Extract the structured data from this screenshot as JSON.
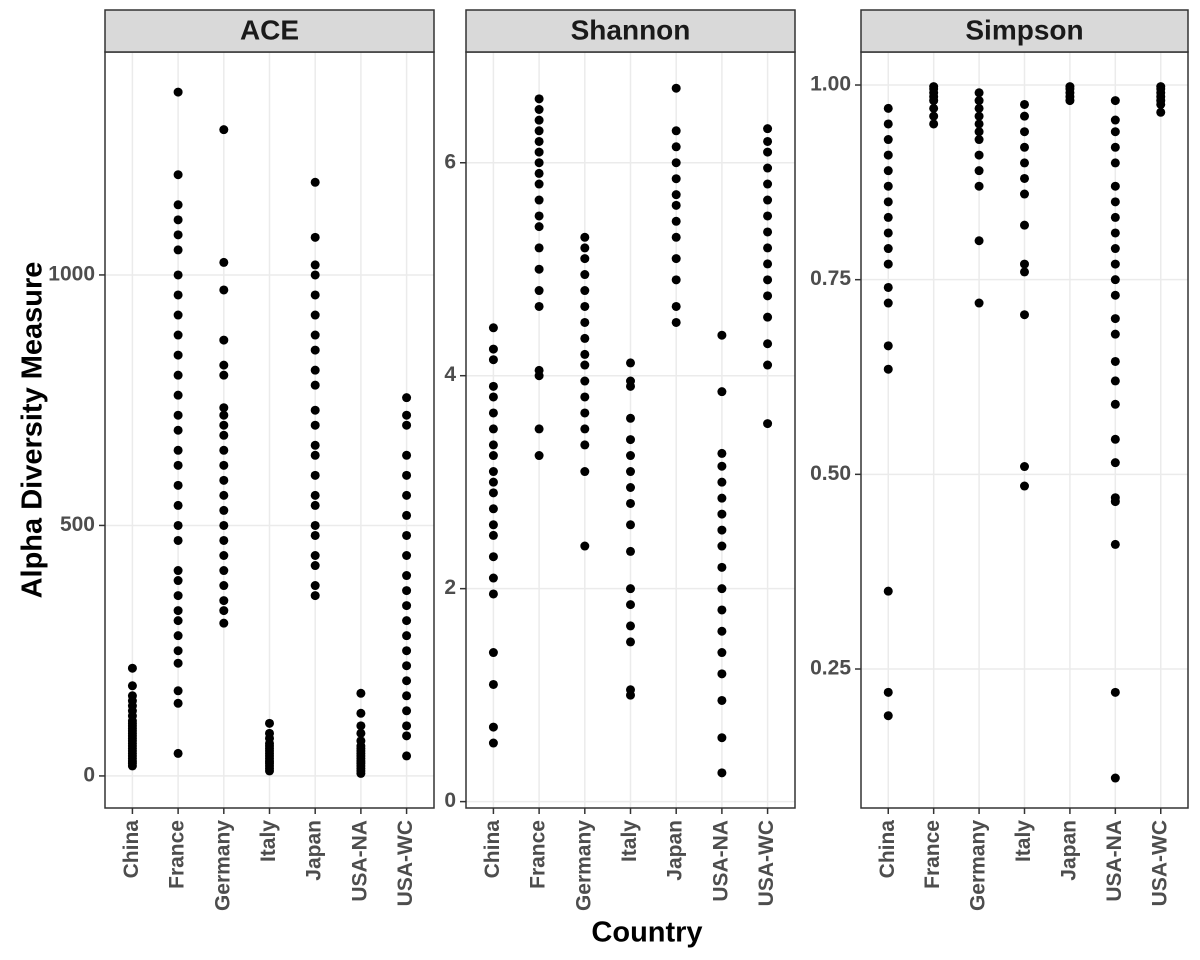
{
  "ylabel": "Alpha Diversity Measure",
  "xlabel": "Country",
  "chart_data": [
    {
      "type": "strip",
      "title": "ACE",
      "color": "#000000",
      "grid": true,
      "categories": [
        "China",
        "France",
        "Germany",
        "Italy",
        "Japan",
        "USA-NA",
        "USA-WC"
      ],
      "ylim": [
        -64,
        1445
      ],
      "yticks": [
        0,
        500,
        1000
      ],
      "values": [
        [
          20,
          25,
          30,
          35,
          40,
          45,
          50,
          55,
          60,
          65,
          70,
          75,
          80,
          85,
          90,
          95,
          100,
          105,
          110,
          120,
          130,
          140,
          150,
          160,
          180,
          215
        ],
        [
          45,
          145,
          170,
          225,
          250,
          280,
          310,
          330,
          360,
          390,
          410,
          470,
          500,
          540,
          580,
          620,
          650,
          690,
          720,
          760,
          800,
          840,
          880,
          920,
          960,
          1000,
          1050,
          1080,
          1110,
          1140,
          1200,
          1365
        ],
        [
          305,
          330,
          350,
          380,
          410,
          440,
          470,
          500,
          530,
          560,
          590,
          620,
          650,
          680,
          700,
          720,
          735,
          800,
          820,
          870,
          970,
          1025,
          1290
        ],
        [
          10,
          15,
          20,
          25,
          30,
          35,
          40,
          45,
          50,
          55,
          60,
          65,
          75,
          85,
          105
        ],
        [
          360,
          380,
          420,
          440,
          480,
          500,
          540,
          560,
          600,
          640,
          660,
          700,
          730,
          780,
          810,
          850,
          880,
          920,
          960,
          1000,
          1020,
          1075,
          1185
        ],
        [
          5,
          10,
          15,
          20,
          25,
          30,
          35,
          40,
          45,
          50,
          55,
          60,
          70,
          85,
          100,
          125,
          165
        ],
        [
          40,
          80,
          100,
          130,
          160,
          190,
          220,
          250,
          280,
          310,
          340,
          370,
          400,
          440,
          480,
          520,
          560,
          600,
          640,
          700,
          720,
          755
        ]
      ]
    },
    {
      "type": "strip",
      "title": "Shannon",
      "color": "#000000",
      "grid": true,
      "categories": [
        "China",
        "France",
        "Germany",
        "Italy",
        "Japan",
        "USA-NA",
        "USA-WC"
      ],
      "ylim": [
        -0.06,
        7.04
      ],
      "yticks": [
        0,
        2,
        4,
        6
      ],
      "values": [
        [
          0.55,
          0.7,
          1.1,
          1.4,
          1.95,
          2.1,
          2.3,
          2.5,
          2.6,
          2.75,
          2.9,
          3.0,
          3.1,
          3.25,
          3.35,
          3.5,
          3.65,
          3.8,
          3.9,
          4.15,
          4.25,
          4.45
        ],
        [
          3.25,
          3.5,
          4.0,
          4.05,
          4.65,
          4.8,
          5.0,
          5.2,
          5.4,
          5.5,
          5.65,
          5.8,
          5.9,
          6.0,
          6.1,
          6.2,
          6.3,
          6.4,
          6.5,
          6.6
        ],
        [
          2.4,
          3.1,
          3.35,
          3.5,
          3.65,
          3.8,
          3.95,
          4.1,
          4.2,
          4.35,
          4.5,
          4.65,
          4.8,
          4.95,
          5.1,
          5.2,
          5.3
        ],
        [
          1.0,
          1.05,
          1.5,
          1.65,
          1.85,
          2.0,
          2.35,
          2.6,
          2.8,
          2.95,
          3.1,
          3.25,
          3.4,
          3.6,
          3.9,
          3.95,
          4.12
        ],
        [
          4.5,
          4.65,
          4.9,
          5.1,
          5.3,
          5.45,
          5.6,
          5.7,
          5.85,
          6.0,
          6.15,
          6.3,
          6.7
        ],
        [
          0.27,
          0.6,
          0.95,
          1.2,
          1.4,
          1.6,
          1.8,
          2.0,
          2.2,
          2.4,
          2.55,
          2.7,
          2.85,
          3.0,
          3.15,
          3.27,
          3.85,
          4.38
        ],
        [
          3.55,
          4.1,
          4.3,
          4.55,
          4.75,
          4.9,
          5.05,
          5.2,
          5.35,
          5.5,
          5.65,
          5.8,
          5.95,
          6.1,
          6.2,
          6.32
        ]
      ]
    },
    {
      "type": "strip",
      "title": "Simpson",
      "color": "#000000",
      "grid": true,
      "categories": [
        "China",
        "France",
        "Germany",
        "Italy",
        "Japan",
        "USA-NA",
        "USA-WC"
      ],
      "ylim": [
        0.0715,
        1.0424
      ],
      "yticks": [
        0.25,
        {
          "value": 0.5,
          "label": "0.50"
        },
        0.75,
        {
          "value": 1,
          "label": "1.00"
        }
      ],
      "values": [
        [
          0.19,
          0.22,
          0.35,
          0.635,
          0.665,
          0.72,
          0.74,
          0.77,
          0.79,
          0.81,
          0.83,
          0.85,
          0.87,
          0.89,
          0.91,
          0.93,
          0.95,
          0.97
        ],
        [
          0.95,
          0.96,
          0.97,
          0.98,
          0.985,
          0.99,
          0.995,
          0.998
        ],
        [
          0.72,
          0.8,
          0.87,
          0.89,
          0.91,
          0.93,
          0.94,
          0.95,
          0.96,
          0.97,
          0.98,
          0.99
        ],
        [
          0.485,
          0.51,
          0.705,
          0.76,
          0.77,
          0.82,
          0.86,
          0.88,
          0.9,
          0.92,
          0.94,
          0.96,
          0.975
        ],
        [
          0.98,
          0.985,
          0.99,
          0.995,
          0.998
        ],
        [
          0.11,
          0.22,
          0.41,
          0.465,
          0.47,
          0.515,
          0.545,
          0.59,
          0.62,
          0.645,
          0.68,
          0.7,
          0.73,
          0.75,
          0.77,
          0.79,
          0.81,
          0.83,
          0.85,
          0.87,
          0.9,
          0.92,
          0.94,
          0.955,
          0.98
        ],
        [
          0.965,
          0.975,
          0.98,
          0.985,
          0.99,
          0.995,
          0.998
        ]
      ]
    }
  ]
}
